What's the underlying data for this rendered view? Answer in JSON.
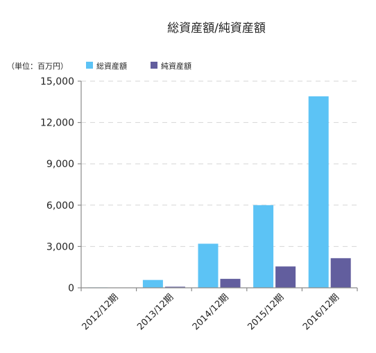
{
  "chart_data": {
    "type": "bar",
    "title": "総資産額/純資産額",
    "unit_label": "（単位：百万円）",
    "xlabel": "",
    "ylabel": "",
    "categories": [
      "2012/12期",
      "2013/12期",
      "2014/12期",
      "2015/12期",
      "2016/12期"
    ],
    "series": [
      {
        "name": "総資産額",
        "color": "#5cc3f5",
        "values": [
          30,
          570,
          3200,
          6000,
          13900
        ]
      },
      {
        "name": "純資産額",
        "color": "#625e9e",
        "values": [
          10,
          80,
          650,
          1550,
          2150
        ]
      }
    ],
    "ylim": [
      0,
      15000
    ],
    "yticks": [
      0,
      3000,
      6000,
      9000,
      12000,
      15000
    ],
    "ytick_labels": [
      "0",
      "3,000",
      "6,000",
      "9,000",
      "12,000",
      "15,000"
    ],
    "grid": true,
    "legend_position": "top-left"
  }
}
